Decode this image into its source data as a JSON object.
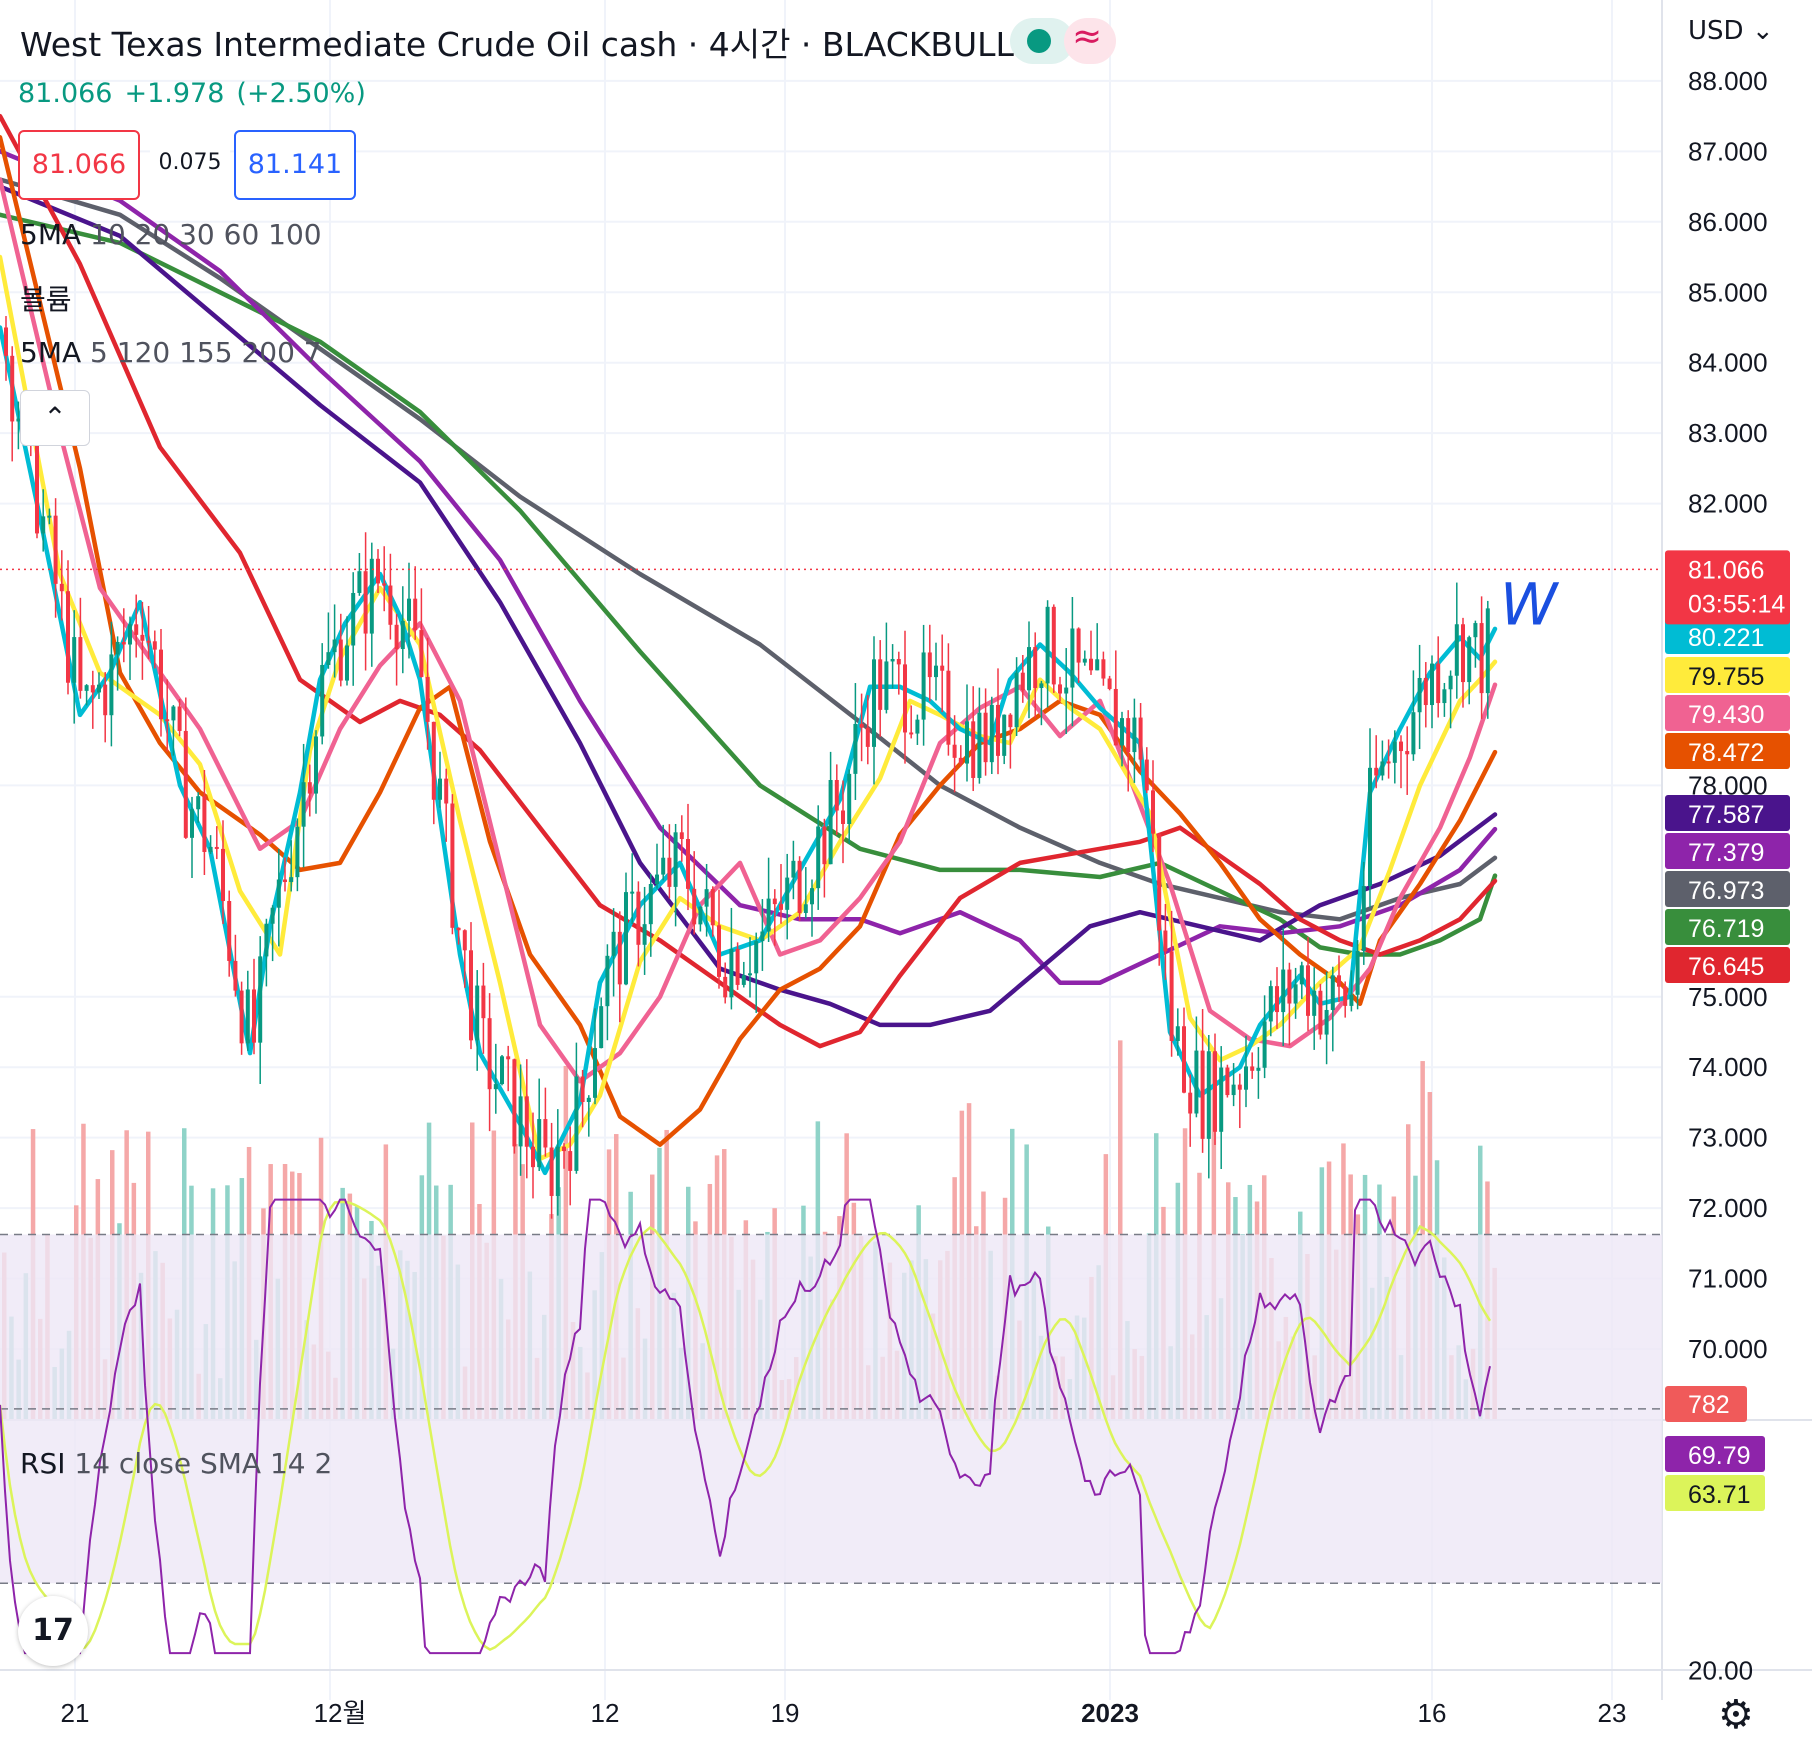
{
  "header": {
    "title": "West Texas Intermediate Crude Oil cash · 4시간 · BLACKBULL",
    "last_price": "81.066",
    "change": "+1.978",
    "change_pct": "(+2.50%)",
    "sell_price": "81.066",
    "spread": "0.075",
    "buy_price": "81.141",
    "currency": "USD",
    "currency_caret": "⌄",
    "status_dot_color": "#089981",
    "approx_symbol": "≈"
  },
  "indicators": {
    "ma1_name": "5MA",
    "ma1_params": "10 20 30 60 100",
    "volume_label": "볼륨",
    "ma2_name": "5MA",
    "ma2_params": "5 120 155 200 7",
    "collapse_glyph": "⌃",
    "rsi_name": "RSI",
    "rsi_params": "14 close SMA 14 2"
  },
  "annotation_text": "W",
  "logo_text": "17",
  "settings_icon": "⚙",
  "chart_data": {
    "type": "candlestick",
    "price_axis": {
      "ticks": [
        "88.000",
        "87.000",
        "86.000",
        "85.000",
        "84.000",
        "83.000",
        "82.000",
        "78.000",
        "75.000",
        "74.000",
        "73.000",
        "72.000",
        "71.000",
        "70.000"
      ],
      "tick_values": [
        88,
        87,
        86,
        85,
        84,
        83,
        82,
        78,
        75,
        74,
        73,
        72,
        71,
        70
      ],
      "range": [
        69.0,
        89.0
      ]
    },
    "time_axis": {
      "labels": [
        "21",
        "12월",
        "12",
        "19",
        "2023",
        "16",
        "23"
      ]
    },
    "current_price": {
      "value": 81.066,
      "label": "81.066",
      "countdown": "03:55:14",
      "color": "#f23645"
    },
    "volume_last": {
      "value": 782,
      "label": "782"
    },
    "moving_averages": [
      {
        "last": 80.221,
        "label": "80.221",
        "color": "#00bcd4"
      },
      {
        "last": 79.755,
        "label": "79.755",
        "color": "#ffeb3b"
      },
      {
        "last": 79.43,
        "label": "79.430",
        "color": "#f06292"
      },
      {
        "last": 78.472,
        "label": "78.472",
        "color": "#e65100"
      },
      {
        "last": 77.587,
        "label": "77.587",
        "color": "#4a148c"
      },
      {
        "last": 77.379,
        "label": "77.379",
        "color": "#8e24aa"
      },
      {
        "last": 76.973,
        "label": "76.973",
        "color": "#5d606b"
      },
      {
        "last": 76.719,
        "label": "76.719",
        "color": "#388e3c"
      },
      {
        "last": 76.645,
        "label": "76.645",
        "color": "#e0262f"
      }
    ],
    "ma_paths": [
      [
        [
          0,
          84.5
        ],
        [
          40,
          81.8
        ],
        [
          80,
          79.0
        ],
        [
          110,
          79.6
        ],
        [
          140,
          80.6
        ],
        [
          180,
          78.0
        ],
        [
          210,
          77.1
        ],
        [
          250,
          74.2
        ],
        [
          270,
          76.0
        ],
        [
          300,
          77.9
        ],
        [
          320,
          79.5
        ],
        [
          345,
          80.3
        ],
        [
          380,
          81.0
        ],
        [
          400,
          80.4
        ],
        [
          420,
          79.5
        ],
        [
          460,
          75.6
        ],
        [
          480,
          74.2
        ],
        [
          520,
          73.2
        ],
        [
          545,
          72.5
        ],
        [
          580,
          73.5
        ],
        [
          600,
          75.2
        ],
        [
          640,
          76.3
        ],
        [
          680,
          76.9
        ],
        [
          720,
          75.6
        ],
        [
          760,
          75.8
        ],
        [
          800,
          76.8
        ],
        [
          840,
          77.8
        ],
        [
          870,
          79.4
        ],
        [
          900,
          79.4
        ],
        [
          930,
          79.2
        ],
        [
          960,
          78.8
        ],
        [
          990,
          78.6
        ],
        [
          1010,
          79.5
        ],
        [
          1040,
          80.0
        ],
        [
          1070,
          79.6
        ],
        [
          1100,
          79.1
        ],
        [
          1140,
          78.6
        ],
        [
          1170,
          74.5
        ],
        [
          1200,
          73.6
        ],
        [
          1240,
          74.0
        ],
        [
          1260,
          74.6
        ],
        [
          1300,
          75.3
        ],
        [
          1320,
          74.9
        ],
        [
          1350,
          75.0
        ],
        [
          1370,
          77.9
        ],
        [
          1400,
          78.8
        ],
        [
          1430,
          79.6
        ],
        [
          1460,
          80.1
        ],
        [
          1480,
          79.8
        ],
        [
          1495,
          80.221
        ]
      ],
      [
        [
          0,
          85.5
        ],
        [
          60,
          81.0
        ],
        [
          100,
          79.6
        ],
        [
          160,
          79.0
        ],
        [
          200,
          78.3
        ],
        [
          240,
          76.5
        ],
        [
          280,
          75.6
        ],
        [
          310,
          78.5
        ],
        [
          340,
          79.8
        ],
        [
          380,
          80.8
        ],
        [
          420,
          80.0
        ],
        [
          460,
          77.5
        ],
        [
          500,
          75.2
        ],
        [
          540,
          72.7
        ],
        [
          570,
          72.9
        ],
        [
          600,
          73.6
        ],
        [
          640,
          75.5
        ],
        [
          680,
          76.4
        ],
        [
          720,
          76.0
        ],
        [
          760,
          75.8
        ],
        [
          800,
          76.2
        ],
        [
          840,
          77.2
        ],
        [
          880,
          78.1
        ],
        [
          910,
          79.2
        ],
        [
          940,
          79.0
        ],
        [
          980,
          78.7
        ],
        [
          1010,
          78.6
        ],
        [
          1040,
          79.5
        ],
        [
          1070,
          79.1
        ],
        [
          1100,
          78.8
        ],
        [
          1150,
          77.6
        ],
        [
          1190,
          74.7
        ],
        [
          1220,
          74.1
        ],
        [
          1250,
          74.3
        ],
        [
          1280,
          74.6
        ],
        [
          1320,
          75.2
        ],
        [
          1360,
          75.7
        ],
        [
          1390,
          76.8
        ],
        [
          1420,
          78.0
        ],
        [
          1460,
          79.2
        ],
        [
          1480,
          79.5
        ],
        [
          1495,
          79.755
        ]
      ],
      [
        [
          0,
          86.6
        ],
        [
          60,
          83.0
        ],
        [
          100,
          80.8
        ],
        [
          160,
          79.6
        ],
        [
          200,
          78.8
        ],
        [
          260,
          77.1
        ],
        [
          300,
          77.5
        ],
        [
          340,
          78.8
        ],
        [
          380,
          79.7
        ],
        [
          420,
          80.3
        ],
        [
          460,
          79.2
        ],
        [
          500,
          76.9
        ],
        [
          540,
          74.6
        ],
        [
          580,
          73.8
        ],
        [
          620,
          74.2
        ],
        [
          660,
          75.0
        ],
        [
          700,
          76.3
        ],
        [
          740,
          76.9
        ],
        [
          780,
          75.6
        ],
        [
          820,
          75.8
        ],
        [
          860,
          76.4
        ],
        [
          900,
          77.2
        ],
        [
          940,
          78.6
        ],
        [
          980,
          79.1
        ],
        [
          1020,
          79.4
        ],
        [
          1060,
          78.7
        ],
        [
          1100,
          79.2
        ],
        [
          1130,
          78.1
        ],
        [
          1170,
          76.6
        ],
        [
          1210,
          74.8
        ],
        [
          1250,
          74.4
        ],
        [
          1290,
          74.3
        ],
        [
          1330,
          74.7
        ],
        [
          1370,
          75.4
        ],
        [
          1400,
          76.4
        ],
        [
          1440,
          77.4
        ],
        [
          1470,
          78.4
        ],
        [
          1495,
          79.43
        ]
      ],
      [
        [
          0,
          87.2
        ],
        [
          80,
          82.5
        ],
        [
          120,
          79.6
        ],
        [
          160,
          78.6
        ],
        [
          200,
          77.9
        ],
        [
          260,
          77.3
        ],
        [
          300,
          76.8
        ],
        [
          340,
          76.9
        ],
        [
          380,
          77.9
        ],
        [
          420,
          79.1
        ],
        [
          450,
          79.4
        ],
        [
          490,
          77.2
        ],
        [
          530,
          75.6
        ],
        [
          580,
          74.6
        ],
        [
          620,
          73.3
        ],
        [
          660,
          72.9
        ],
        [
          700,
          73.4
        ],
        [
          740,
          74.4
        ],
        [
          780,
          75.1
        ],
        [
          820,
          75.4
        ],
        [
          860,
          76.0
        ],
        [
          900,
          77.3
        ],
        [
          940,
          78.0
        ],
        [
          980,
          78.6
        ],
        [
          1020,
          78.8
        ],
        [
          1060,
          79.2
        ],
        [
          1100,
          79.0
        ],
        [
          1140,
          78.2
        ],
        [
          1180,
          77.6
        ],
        [
          1220,
          76.9
        ],
        [
          1260,
          76.1
        ],
        [
          1300,
          75.6
        ],
        [
          1340,
          75.2
        ],
        [
          1360,
          74.9
        ],
        [
          1380,
          75.8
        ],
        [
          1420,
          76.6
        ],
        [
          1460,
          77.5
        ],
        [
          1495,
          78.472
        ]
      ],
      [
        [
          0,
          86.5
        ],
        [
          120,
          85.8
        ],
        [
          220,
          84.6
        ],
        [
          320,
          83.4
        ],
        [
          420,
          82.3
        ],
        [
          500,
          80.6
        ],
        [
          580,
          78.6
        ],
        [
          640,
          76.9
        ],
        [
          720,
          75.4
        ],
        [
          780,
          75.1
        ],
        [
          830,
          74.9
        ],
        [
          880,
          74.6
        ],
        [
          930,
          74.6
        ],
        [
          990,
          74.8
        ],
        [
          1040,
          75.4
        ],
        [
          1090,
          76.0
        ],
        [
          1140,
          76.2
        ],
        [
          1200,
          76.0
        ],
        [
          1260,
          75.8
        ],
        [
          1320,
          76.3
        ],
        [
          1380,
          76.6
        ],
        [
          1440,
          77.0
        ],
        [
          1495,
          77.587
        ]
      ],
      [
        [
          0,
          87.0
        ],
        [
          120,
          86.3
        ],
        [
          220,
          85.3
        ],
        [
          320,
          83.9
        ],
        [
          420,
          82.6
        ],
        [
          500,
          81.2
        ],
        [
          580,
          79.2
        ],
        [
          660,
          77.4
        ],
        [
          740,
          76.3
        ],
        [
          800,
          76.1
        ],
        [
          860,
          76.1
        ],
        [
          900,
          75.9
        ],
        [
          960,
          76.2
        ],
        [
          1020,
          75.8
        ],
        [
          1060,
          75.2
        ],
        [
          1100,
          75.2
        ],
        [
          1160,
          75.6
        ],
        [
          1220,
          76.0
        ],
        [
          1280,
          75.9
        ],
        [
          1340,
          76.0
        ],
        [
          1400,
          76.3
        ],
        [
          1460,
          76.8
        ],
        [
          1495,
          77.379
        ]
      ],
      [
        [
          0,
          86.6
        ],
        [
          120,
          86.1
        ],
        [
          220,
          85.2
        ],
        [
          320,
          84.2
        ],
        [
          420,
          83.2
        ],
        [
          520,
          82.1
        ],
        [
          640,
          81.0
        ],
        [
          760,
          80.0
        ],
        [
          860,
          78.9
        ],
        [
          940,
          78.0
        ],
        [
          1020,
          77.4
        ],
        [
          1100,
          76.9
        ],
        [
          1160,
          76.6
        ],
        [
          1220,
          76.4
        ],
        [
          1280,
          76.2
        ],
        [
          1340,
          76.1
        ],
        [
          1400,
          76.4
        ],
        [
          1460,
          76.6
        ],
        [
          1495,
          76.973
        ]
      ],
      [
        [
          0,
          86.1
        ],
        [
          120,
          85.7
        ],
        [
          220,
          85.0
        ],
        [
          320,
          84.3
        ],
        [
          420,
          83.3
        ],
        [
          520,
          81.9
        ],
        [
          640,
          79.9
        ],
        [
          760,
          78.0
        ],
        [
          860,
          77.1
        ],
        [
          940,
          76.8
        ],
        [
          1020,
          76.8
        ],
        [
          1100,
          76.7
        ],
        [
          1160,
          76.9
        ],
        [
          1220,
          76.5
        ],
        [
          1280,
          76.1
        ],
        [
          1320,
          75.7
        ],
        [
          1360,
          75.6
        ],
        [
          1400,
          75.6
        ],
        [
          1440,
          75.8
        ],
        [
          1480,
          76.1
        ],
        [
          1495,
          76.719
        ]
      ],
      [
        [
          0,
          87.5
        ],
        [
          80,
          85.4
        ],
        [
          160,
          82.8
        ],
        [
          240,
          81.3
        ],
        [
          300,
          79.5
        ],
        [
          360,
          78.9
        ],
        [
          400,
          79.2
        ],
        [
          440,
          79.0
        ],
        [
          480,
          78.5
        ],
        [
          540,
          77.4
        ],
        [
          600,
          76.3
        ],
        [
          660,
          75.8
        ],
        [
          720,
          75.2
        ],
        [
          780,
          74.6
        ],
        [
          820,
          74.3
        ],
        [
          860,
          74.5
        ],
        [
          900,
          75.3
        ],
        [
          960,
          76.4
        ],
        [
          1020,
          76.9
        ],
        [
          1060,
          77.0
        ],
        [
          1100,
          77.1
        ],
        [
          1140,
          77.2
        ],
        [
          1180,
          77.4
        ],
        [
          1220,
          77.0
        ],
        [
          1260,
          76.6
        ],
        [
          1300,
          76.1
        ],
        [
          1340,
          75.8
        ],
        [
          1380,
          75.6
        ],
        [
          1420,
          75.8
        ],
        [
          1460,
          76.1
        ],
        [
          1495,
          76.645
        ]
      ]
    ],
    "candles_seed": 7,
    "rsi": {
      "ticks": [
        "40.00",
        "20.00"
      ],
      "tick_values": [
        40,
        20
      ],
      "range": [
        18,
        76
      ],
      "bands": [
        70,
        50,
        30
      ],
      "rsi_last": {
        "value": 69.79,
        "label": "69.79",
        "color": "#8e24aa"
      },
      "sma_last": {
        "value": 63.71,
        "label": "63.71",
        "color": "#dcf45a"
      }
    }
  }
}
